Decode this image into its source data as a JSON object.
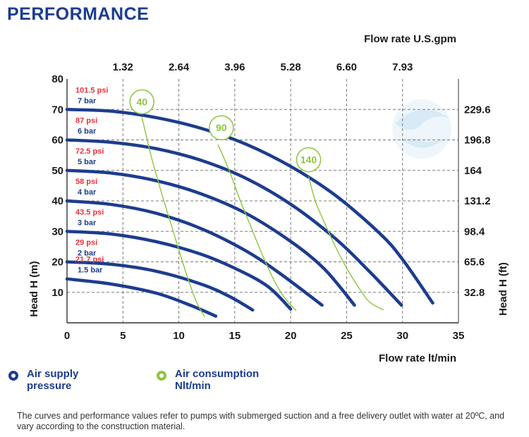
{
  "title": "PERFORMANCE",
  "chart_data": {
    "type": "line",
    "x_bottom": {
      "label": "Flow rate  lt/min",
      "range": [
        0,
        35
      ],
      "ticks": [
        "0",
        "5",
        "10",
        "15",
        "20",
        "25",
        "30",
        "35"
      ]
    },
    "x_top": {
      "label": "Flow rate U.S.gpm",
      "ticks": [
        "1.32",
        "2.64",
        "3.96",
        "5.28",
        "6.60",
        "7.93"
      ],
      "tick_values": [
        5,
        10,
        15,
        20,
        25,
        30
      ]
    },
    "y_left": {
      "label": "Head H (m)",
      "range": [
        0,
        80
      ],
      "ticks": [
        "10",
        "20",
        "30",
        "40",
        "50",
        "60",
        "70",
        "80"
      ]
    },
    "y_right": {
      "label": "Head H (ft)",
      "ticks": [
        "32.8",
        "65.6",
        "98.4",
        "131.2",
        "164",
        "196.8",
        "229.6"
      ],
      "tick_values": [
        10,
        20,
        30,
        40,
        50,
        60,
        70
      ]
    },
    "grid": true,
    "series": [
      {
        "name": "7 bar",
        "psi": "101.5 psi",
        "bar": "7 bar",
        "kind": "pressure",
        "x": [
          0,
          4,
          8,
          12,
          16,
          20,
          24,
          28,
          30,
          32.7
        ],
        "y": [
          70,
          69.4,
          67.3,
          63.8,
          58.6,
          51.3,
          41.8,
          29.2,
          20.8,
          6.5
        ]
      },
      {
        "name": "6 bar",
        "psi": "87 psi",
        "bar": "6 bar",
        "kind": "pressure",
        "x": [
          0,
          4,
          8,
          12,
          16,
          20,
          24,
          27,
          29.9
        ],
        "y": [
          60,
          59.2,
          57.1,
          53.3,
          47.4,
          38.9,
          27.6,
          17,
          5.8
        ]
      },
      {
        "name": "5 bar",
        "psi": "72.5 psi",
        "bar": "5 bar",
        "kind": "pressure",
        "x": [
          0,
          4,
          8,
          12,
          16,
          20,
          23,
          25.7
        ],
        "y": [
          50,
          49.1,
          46.6,
          42.3,
          35.9,
          26.7,
          17.7,
          5.8
        ]
      },
      {
        "name": "4 bar",
        "psi": "58 psi",
        "bar": "4 bar",
        "kind": "pressure",
        "x": [
          0,
          4,
          8,
          12,
          16,
          19,
          22.8
        ],
        "y": [
          40,
          38.8,
          35.9,
          30.9,
          23.6,
          16.3,
          5.8
        ]
      },
      {
        "name": "3 bar",
        "psi": "43.5 psi",
        "bar": "3 bar",
        "kind": "pressure",
        "x": [
          0,
          4,
          8,
          12,
          15,
          17.9,
          20
        ],
        "y": [
          30,
          29.1,
          26.6,
          22.5,
          17.9,
          12.1,
          4.5
        ]
      },
      {
        "name": "2 bar",
        "psi": "29 psi",
        "bar": "2 bar",
        "kind": "pressure",
        "x": [
          0,
          4,
          8,
          12,
          14.5,
          16.6
        ],
        "y": [
          20,
          19.2,
          16.9,
          12.7,
          8.7,
          4.2
        ]
      },
      {
        "name": "1.5 bar",
        "psi": "21.7 psi",
        "bar": "1.5 bar",
        "kind": "pressure",
        "x": [
          0,
          4,
          8,
          11,
          13.3
        ],
        "y": [
          14.4,
          12.7,
          9.7,
          5.8,
          2.2
        ]
      },
      {
        "name": "40",
        "kind": "air",
        "x": [
          6.7,
          7.5,
          8.5,
          9.5,
          10.5,
          11.5,
          12.3
        ],
        "y": [
          67.5,
          55,
          42,
          30,
          18,
          7.5,
          2
        ]
      },
      {
        "name": "90",
        "kind": "air",
        "x": [
          13.5,
          14.5,
          15.5,
          16.5,
          17.5,
          18.5,
          19.5,
          20.5
        ],
        "y": [
          58.5,
          50,
          40,
          31,
          22,
          14,
          8,
          4
        ]
      },
      {
        "name": "140",
        "kind": "air",
        "x": [
          21.6,
          22.2,
          23,
          24,
          25,
          26,
          27,
          28.3
        ],
        "y": [
          48,
          40,
          33,
          25,
          18,
          12,
          7,
          4.2
        ]
      }
    ],
    "air_labels": [
      {
        "text": "40",
        "x": 6.7,
        "y": 72.5
      },
      {
        "text": "90",
        "x": 13.8,
        "y": 64
      },
      {
        "text": "140",
        "x": 21.6,
        "y": 53.5
      }
    ],
    "pressure_color": "#1d3c8f",
    "air_color": "#8cc63f"
  },
  "legend": {
    "pressure_line1": "Air supply",
    "pressure_line2": "pressure",
    "air_line1": "Air consumption",
    "air_line2": "Nlt/min"
  },
  "footnote": "The curves and performance values refer to pumps with submerged suction and a free delivery outlet with water at 20ºC, and vary according to the construction material."
}
